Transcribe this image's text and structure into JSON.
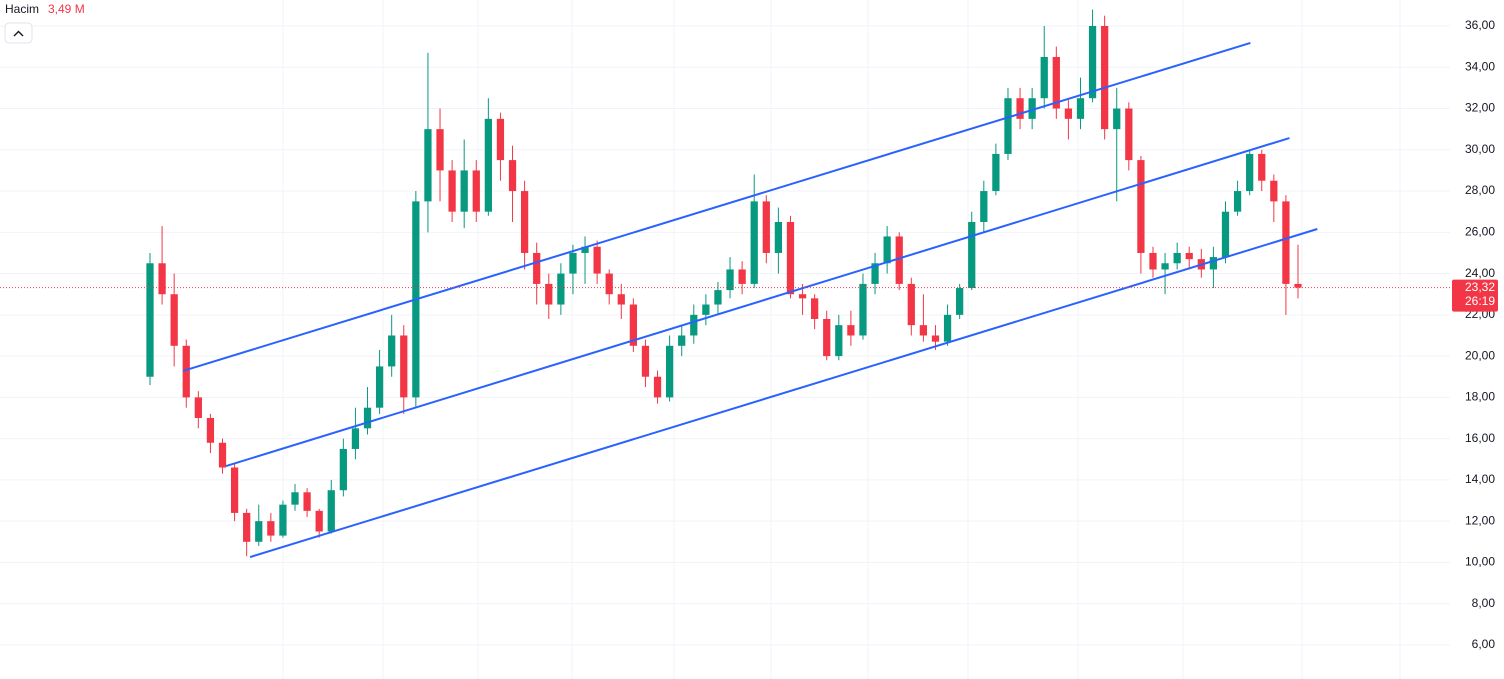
{
  "chart_data": {
    "type": "candlestick",
    "volume_label": "Hacim",
    "volume_value": "3,49 M",
    "up_color": "#089981",
    "down_color": "#f23645",
    "grid": true,
    "open": [
      19,
      24.5,
      23,
      20.5,
      18,
      17,
      15.8,
      14.6,
      12.4,
      11,
      12,
      11.3,
      12.8,
      13.4,
      12.5,
      11.5,
      13.5,
      15.5,
      16.5,
      17.5,
      19.5,
      21,
      18,
      27.5,
      31,
      29,
      27,
      29,
      27,
      31.5,
      29.5,
      28,
      25,
      23.5,
      22.5,
      24,
      25,
      25.3,
      24,
      23,
      22.5,
      20.5,
      19,
      18,
      20.5,
      21,
      22,
      22.5,
      23.2,
      24.2,
      23.5,
      27.5,
      25,
      26.5,
      23,
      22.8,
      21.8,
      20,
      21.5,
      21,
      23.5,
      24.5,
      25.8,
      23.5,
      21.5,
      21,
      20.7,
      22,
      23.3,
      26.5,
      28,
      29.8,
      32.5,
      31.5,
      32.5,
      34.5,
      32,
      31.5,
      32.5,
      36,
      31,
      32,
      29.5,
      25,
      24.2,
      24.5,
      25,
      24.7,
      24.2,
      24.8,
      27,
      28,
      29.8,
      28.5,
      27.5,
      23.5
    ],
    "high": [
      25,
      26.3,
      24,
      20.8,
      18.3,
      17.2,
      16,
      14.8,
      12.6,
      12.8,
      12.4,
      13,
      13.8,
      13.6,
      12.6,
      14,
      16,
      17.5,
      18.5,
      20.3,
      22,
      21.5,
      28,
      34.7,
      32,
      29.5,
      30.5,
      29.5,
      32.5,
      31.8,
      30.2,
      28.5,
      25.5,
      24,
      24.5,
      25.4,
      25.8,
      25.6,
      24.2,
      23.5,
      22.8,
      20.8,
      19.3,
      21,
      21.5,
      22.5,
      23,
      23.6,
      24.8,
      24.6,
      28.8,
      27.8,
      27.2,
      26.8,
      23.5,
      23,
      22.2,
      22,
      22.2,
      24,
      25,
      26.3,
      26,
      23.8,
      23,
      21.5,
      22.5,
      23.5,
      27,
      28.5,
      30.3,
      33,
      33,
      33,
      36,
      35,
      32.5,
      33.5,
      36.8,
      36.5,
      33,
      32.3,
      29.7,
      25.3,
      25,
      25.5,
      25.3,
      25.2,
      25.3,
      27.5,
      28.5,
      30,
      30,
      28.8,
      27.8,
      25.4
    ],
    "low": [
      18.6,
      22.5,
      19.5,
      17.5,
      16.5,
      15.3,
      14.3,
      12,
      10.3,
      10.8,
      11,
      11.2,
      12.5,
      12.2,
      11.2,
      11.4,
      13.2,
      15,
      16.2,
      17.2,
      19,
      17.2,
      17.5,
      26,
      27.5,
      26.5,
      26.2,
      26.5,
      26.8,
      28.5,
      26.5,
      24.2,
      22.5,
      21.8,
      22,
      23,
      23.5,
      23.5,
      22.5,
      21.8,
      20.2,
      18.5,
      17.7,
      17.8,
      20,
      20.6,
      21.5,
      22,
      22.8,
      23,
      23.3,
      24.5,
      24,
      22.8,
      22,
      21.3,
      19.8,
      19.8,
      20.5,
      20.8,
      23,
      24,
      23.2,
      21,
      20.7,
      20.3,
      20.5,
      21.8,
      23.2,
      26,
      27.8,
      29.5,
      31,
      31,
      32,
      31.5,
      30.5,
      31,
      32.3,
      30.5,
      27.5,
      29,
      24,
      23.8,
      23,
      24.2,
      24.2,
      23.8,
      23.3,
      24.5,
      26.8,
      27.8,
      28,
      26.5,
      22,
      22.8
    ],
    "close": [
      24.5,
      23,
      20.5,
      18,
      17,
      15.8,
      14.6,
      12.4,
      11,
      12,
      11.3,
      12.8,
      13.4,
      12.5,
      11.5,
      13.5,
      15.5,
      16.5,
      17.5,
      19.5,
      21,
      18,
      27.5,
      31,
      29,
      27,
      29,
      27,
      31.5,
      29.5,
      28,
      25,
      23.5,
      22.5,
      24,
      25,
      25.3,
      24,
      23,
      22.5,
      20.5,
      19,
      18,
      20.5,
      21,
      22,
      22.5,
      23.2,
      24.2,
      23.5,
      27.5,
      25,
      26.5,
      23,
      22.8,
      21.8,
      20,
      21.5,
      21,
      23.5,
      24.5,
      25.8,
      23.5,
      21.5,
      21,
      20.7,
      22,
      23.3,
      26.5,
      28,
      29.8,
      32.5,
      31.5,
      32.5,
      34.5,
      32,
      31.5,
      32.5,
      36,
      31,
      32,
      29.5,
      25,
      24.2,
      24.5,
      25,
      24.7,
      24.2,
      24.8,
      27,
      28,
      29.8,
      28.5,
      27.5,
      23.5,
      23.32
    ],
    "ylim": [
      4.35,
      37.26
    ],
    "yticks": [
      {
        "value": 6,
        "label": "6,00"
      },
      {
        "value": 8,
        "label": "8,00"
      },
      {
        "value": 10,
        "label": "10,00"
      },
      {
        "value": 12,
        "label": "12,00"
      },
      {
        "value": 14,
        "label": "14,00"
      },
      {
        "value": 16,
        "label": "16,00"
      },
      {
        "value": 18,
        "label": "18,00"
      },
      {
        "value": 20,
        "label": "20,00"
      },
      {
        "value": 22,
        "label": "22,00"
      },
      {
        "value": 24,
        "label": "24,00"
      },
      {
        "value": 26,
        "label": "26,00"
      },
      {
        "value": 28,
        "label": "28,00"
      },
      {
        "value": 30,
        "label": "30,00"
      },
      {
        "value": 32,
        "label": "32,00"
      },
      {
        "value": 34,
        "label": "34,00"
      },
      {
        "value": 36,
        "label": "36,00"
      }
    ],
    "last_price": {
      "value": 23.32,
      "label": "23,32"
    },
    "countdown": "26:19",
    "trendline_color": "#2962ff",
    "trendlines": [
      {
        "x": [
          2.73,
          91.06
        ],
        "y": [
          19.28,
          35.18
        ]
      },
      {
        "x": [
          6.29,
          94.29
        ],
        "y": [
          14.67,
          30.57
        ]
      },
      {
        "x": [
          8.28,
          96.6
        ],
        "y": [
          10.26,
          26.16
        ]
      }
    ]
  }
}
